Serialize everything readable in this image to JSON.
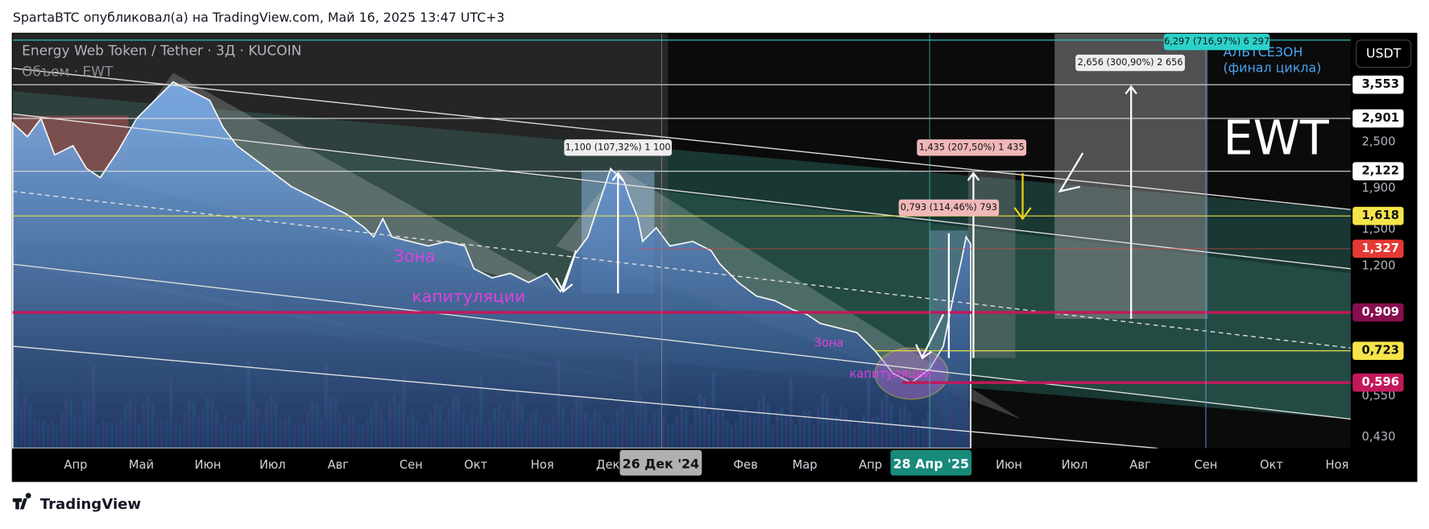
{
  "header": {
    "text": "SpartaBTC опубликовал(а) на TradingView.com, Май 16, 2025 13:47 UTC+3"
  },
  "legend": {
    "symbol": "Energy Web Token / Tether · 3Д · KUCOIN",
    "volume": "Объем · EWT"
  },
  "currency": "USDT",
  "price_axis": [
    "2,500",
    "1,900",
    "1,500",
    "1,200",
    "0,550",
    "0,430"
  ],
  "price_badges": [
    "3,553",
    "2,901",
    "2,122",
    "1,618",
    "1,327",
    "0,909",
    "0,723",
    "0,596"
  ],
  "time_axis": [
    "Апр",
    "Май",
    "Июн",
    "Июл",
    "Авг",
    "Сен",
    "Окт",
    "Ноя",
    "Дек",
    "Фев",
    "Мар",
    "Апр",
    "Июн",
    "Июл",
    "Авг",
    "Сен",
    "Окт",
    "Ноя"
  ],
  "time_badges": [
    "26 Дек '24",
    "28 Апр '25"
  ],
  "annotations": {
    "measure_1": "1,100 (107,32%) 1 100",
    "measure_2": "1,435 (207,50%) 1 435",
    "measure_3": "0,793 (114,46%) 793",
    "measure_4": "2,656 (300,90%) 2 656",
    "measure_5": "6,297 (716,97%) 6 297",
    "altseason": "АЛЬТСЕЗОН",
    "cycle_end": "(финал цикла)",
    "ticker": "EWT",
    "zone_1": "Зона",
    "zone_1b": "капитуляции",
    "zone_2": "Зона",
    "zone_2b": "капитуляции"
  },
  "footer": "TradingView"
}
